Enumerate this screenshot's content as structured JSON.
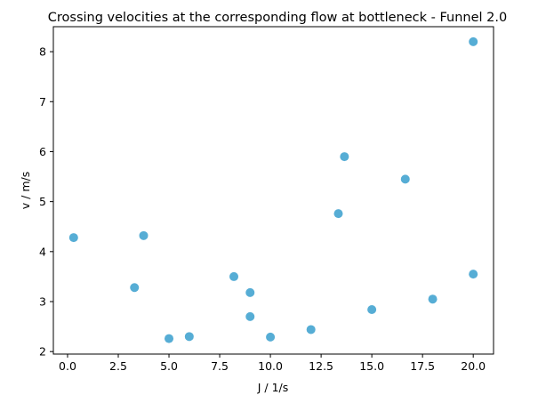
{
  "chart_data": {
    "type": "scatter",
    "title": "Crossing velocities at the corresponding flow at bottleneck - Funnel 2.0",
    "xlabel": "J / 1/s",
    "ylabel": "v / m/s",
    "xlim": [
      -0.7,
      21.0
    ],
    "ylim": [
      1.95,
      8.5
    ],
    "xticks": [
      0.0,
      2.5,
      5.0,
      7.5,
      10.0,
      12.5,
      15.0,
      17.5,
      20.0
    ],
    "xtick_labels": [
      "0.0",
      "2.5",
      "5.0",
      "7.5",
      "10.0",
      "12.5",
      "15.0",
      "17.5",
      "20.0"
    ],
    "yticks": [
      2,
      3,
      4,
      5,
      6,
      7,
      8
    ],
    "ytick_labels": [
      "2",
      "3",
      "4",
      "5",
      "6",
      "7",
      "8"
    ],
    "grid": false,
    "color": "#56ADD5",
    "series": [
      {
        "x": [
          0.3,
          3.3,
          3.75,
          5.0,
          6.0,
          8.2,
          9.0,
          9.0,
          10.0,
          12.0,
          13.35,
          13.65,
          15.0,
          16.65,
          18.0,
          20.0,
          20.0
        ],
        "y": [
          4.28,
          3.28,
          4.32,
          2.26,
          2.3,
          3.5,
          3.18,
          2.7,
          2.29,
          2.44,
          4.76,
          5.9,
          2.84,
          5.45,
          3.05,
          3.55,
          8.2
        ]
      }
    ]
  }
}
